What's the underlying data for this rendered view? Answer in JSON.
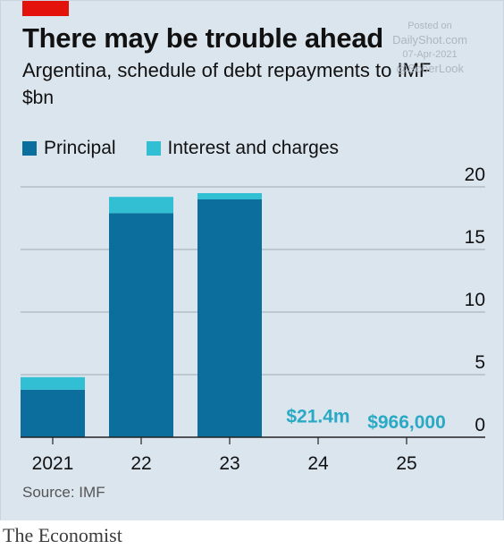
{
  "header": {
    "title": "There may be trouble ahead",
    "subtitle": "Argentina, schedule of debt repayments to IMF",
    "unit": "$bn"
  },
  "watermark": {
    "line1": "Posted on",
    "line2": "DailyShot.com",
    "line3": "07-Apr-2021",
    "line4": "@SoberLook"
  },
  "source": "Source: IMF",
  "brand": "The Economist",
  "colors": {
    "principal": "#0b6e9c",
    "interest": "#33bfd3",
    "annotation": "#2aa9c4",
    "grid": "#9fa9b2",
    "background": "#dbe5ee",
    "accent_red": "#e3120b"
  },
  "chart_data": {
    "type": "bar",
    "stacked": true,
    "categories": [
      "2021",
      "22",
      "23",
      "24",
      "25"
    ],
    "series": [
      {
        "name": "Principal",
        "values": [
          3.8,
          17.9,
          19.0,
          0.0214,
          0.000966
        ]
      },
      {
        "name": "Interest and charges",
        "values": [
          1.0,
          1.3,
          0.5,
          0,
          0
        ]
      }
    ],
    "annotations": [
      {
        "category": "24",
        "text": "$21.4m"
      },
      {
        "category": "25",
        "text": "$966,000"
      }
    ],
    "ylim": [
      0,
      20
    ],
    "yticks": [
      0,
      5,
      10,
      15,
      20
    ],
    "ytick_labels": [
      "0",
      "5",
      "10",
      "15",
      "20"
    ],
    "grid": true,
    "y_axis_side": "right",
    "legend_position": "top-left"
  }
}
